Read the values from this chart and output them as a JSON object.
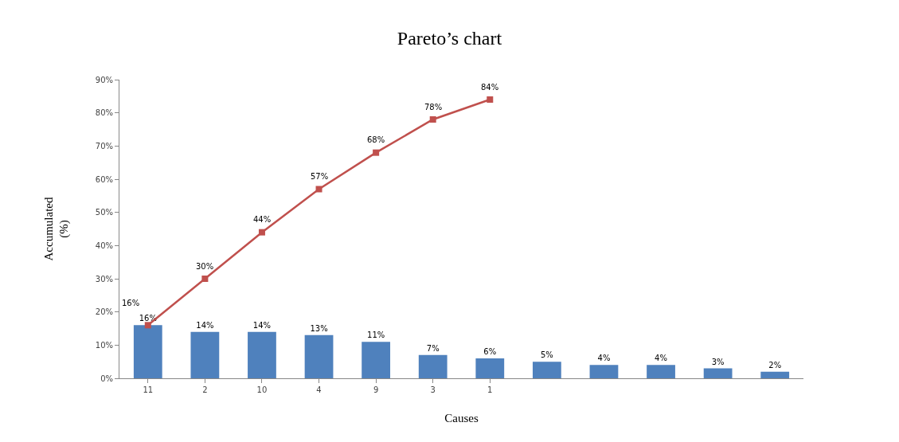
{
  "chart_data": {
    "type": "bar",
    "title": "Pareto’s chart",
    "xlabel": "Causes",
    "ylabel": "Accumulated (%)",
    "categories": [
      "11",
      "2",
      "10",
      "4",
      "9",
      "3",
      "1",
      null,
      null,
      null,
      null,
      null
    ],
    "series": [
      {
        "color": "#4f81bd",
        "values": [
          16,
          14,
          14,
          13,
          11,
          7,
          6,
          5,
          4,
          4,
          3,
          2
        ],
        "value_labels": [
          "16%",
          "14%",
          "14%",
          "13%",
          "11%",
          "7%",
          "6%",
          "5%",
          "4%",
          "4%",
          "3%",
          "2%"
        ]
      },
      {
        "type": "line",
        "color": "#c0504d",
        "marker": "square",
        "line_style": "solid",
        "values": [
          16,
          30,
          44,
          57,
          68,
          78,
          84,
          null,
          null,
          null,
          null,
          null
        ],
        "value_labels": [
          "16%",
          "30%",
          "44%",
          "57%",
          "68%",
          "78%",
          "84%",
          null,
          null,
          null,
          null,
          null
        ]
      }
    ],
    "ylim": [
      0,
      90
    ],
    "yticks": [
      {
        "value": 0,
        "label": "0%"
      },
      {
        "value": 10,
        "label": "10%"
      },
      {
        "value": 20,
        "label": "20%"
      },
      {
        "value": 30,
        "label": "30%"
      },
      {
        "value": 40,
        "label": "40%"
      },
      {
        "value": 50,
        "label": "50%"
      },
      {
        "value": 60,
        "label": "60%"
      },
      {
        "value": 70,
        "label": "70%"
      },
      {
        "value": 80,
        "label": "80%"
      },
      {
        "value": 90,
        "label": "90%"
      }
    ],
    "grid": false,
    "legend": false
  }
}
